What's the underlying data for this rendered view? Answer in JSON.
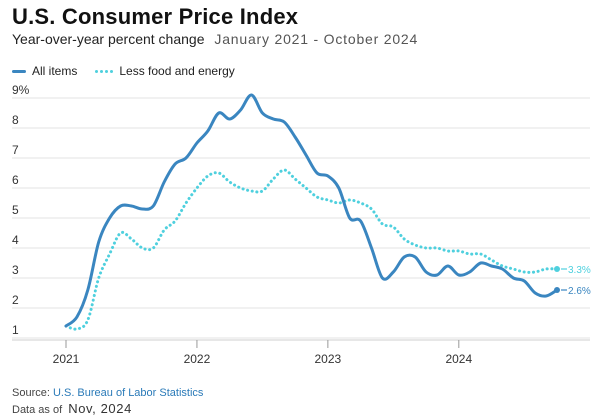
{
  "header": {
    "title": "U.S. Consumer Price Index",
    "subtitle": "Year-over-year percent change",
    "date_range": "January 2021 - October 2024"
  },
  "footer": {
    "source_prefix": "Source:",
    "source_link": "U.S. Bureau of Labor Statistics",
    "data_as_of_label": "Data as of",
    "data_as_of_value": "Nov, 2024"
  },
  "colors": {
    "all_items": "#3a86c0",
    "core": "#4fd0de",
    "grid": "#e3e3e3"
  },
  "chart_data": {
    "type": "line",
    "title": "U.S. Consumer Price Index",
    "subtitle": "Year-over-year percent change",
    "x": [
      "2021-01",
      "2021-02",
      "2021-03",
      "2021-04",
      "2021-05",
      "2021-06",
      "2021-07",
      "2021-08",
      "2021-09",
      "2021-10",
      "2021-11",
      "2021-12",
      "2022-01",
      "2022-02",
      "2022-03",
      "2022-04",
      "2022-05",
      "2022-06",
      "2022-07",
      "2022-08",
      "2022-09",
      "2022-10",
      "2022-11",
      "2022-12",
      "2023-01",
      "2023-02",
      "2023-03",
      "2023-04",
      "2023-05",
      "2023-06",
      "2023-07",
      "2023-08",
      "2023-09",
      "2023-10",
      "2023-11",
      "2023-12",
      "2024-01",
      "2024-02",
      "2024-03",
      "2024-04",
      "2024-05",
      "2024-06",
      "2024-07",
      "2024-08",
      "2024-09",
      "2024-10"
    ],
    "x_ticks": [
      "2021",
      "2022",
      "2023",
      "2024"
    ],
    "y_ticks": [
      "1",
      "2",
      "3",
      "4",
      "5",
      "6",
      "7",
      "8",
      "9%"
    ],
    "ylim": [
      1,
      9
    ],
    "grid": true,
    "legend": "top-left",
    "series": [
      {
        "name": "All items",
        "end_label": "2.6%",
        "values": [
          1.4,
          1.7,
          2.6,
          4.2,
          5.0,
          5.4,
          5.4,
          5.3,
          5.4,
          6.2,
          6.8,
          7.0,
          7.5,
          7.9,
          8.5,
          8.3,
          8.6,
          9.1,
          8.5,
          8.3,
          8.2,
          7.7,
          7.1,
          6.5,
          6.4,
          6.0,
          5.0,
          4.9,
          4.0,
          3.0,
          3.2,
          3.7,
          3.7,
          3.2,
          3.1,
          3.4,
          3.1,
          3.2,
          3.5,
          3.4,
          3.3,
          3.0,
          2.9,
          2.5,
          2.4,
          2.6
        ]
      },
      {
        "name": "Less food and energy",
        "end_label": "3.3%",
        "values": [
          1.4,
          1.3,
          1.6,
          3.0,
          3.8,
          4.5,
          4.3,
          4.0,
          4.0,
          4.6,
          4.9,
          5.5,
          6.0,
          6.4,
          6.5,
          6.2,
          6.0,
          5.9,
          5.9,
          6.3,
          6.6,
          6.3,
          6.0,
          5.7,
          5.6,
          5.5,
          5.6,
          5.5,
          5.3,
          4.8,
          4.7,
          4.3,
          4.1,
          4.0,
          4.0,
          3.9,
          3.9,
          3.8,
          3.8,
          3.6,
          3.4,
          3.3,
          3.2,
          3.2,
          3.3,
          3.3
        ]
      }
    ]
  }
}
